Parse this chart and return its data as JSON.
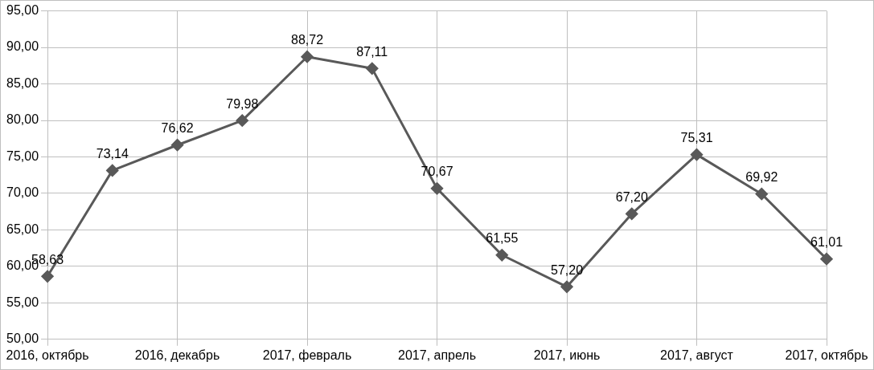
{
  "chart_data": {
    "type": "line",
    "categories": [
      "2016, октябрь",
      null,
      "2016, декабрь",
      null,
      "2017, февраль",
      null,
      "2017, апрель",
      null,
      "2017, июнь",
      null,
      "2017, август",
      null,
      "2017, октябрь"
    ],
    "series": [
      {
        "color": "#595959",
        "values": [
          58.63,
          73.14,
          76.62,
          79.98,
          88.72,
          87.11,
          70.67,
          61.55,
          57.2,
          67.2,
          75.31,
          69.92,
          61.01
        ],
        "value_labels": [
          "58,63",
          "73,14",
          "76,62",
          "79,98",
          "88,72",
          "87,11",
          "70,67",
          "61,55",
          "57,20",
          "67,20",
          "75,31",
          "69,92",
          "61,01"
        ]
      }
    ],
    "ylim": [
      50,
      95
    ],
    "yticks": [
      {
        "value": 50,
        "label": "50,00"
      },
      {
        "value": 55,
        "label": "55,00"
      },
      {
        "value": 60,
        "label": "60,00"
      },
      {
        "value": 65,
        "label": "65,00"
      },
      {
        "value": 70,
        "label": "70,00"
      },
      {
        "value": 75,
        "label": "75,00"
      },
      {
        "value": 80,
        "label": "80,00"
      },
      {
        "value": 85,
        "label": "85,00"
      },
      {
        "value": 90,
        "label": "90,00"
      },
      {
        "value": 95,
        "label": "95,00"
      }
    ],
    "grid": true,
    "legend": false,
    "marker": "diamond",
    "line_style": "solid"
  }
}
